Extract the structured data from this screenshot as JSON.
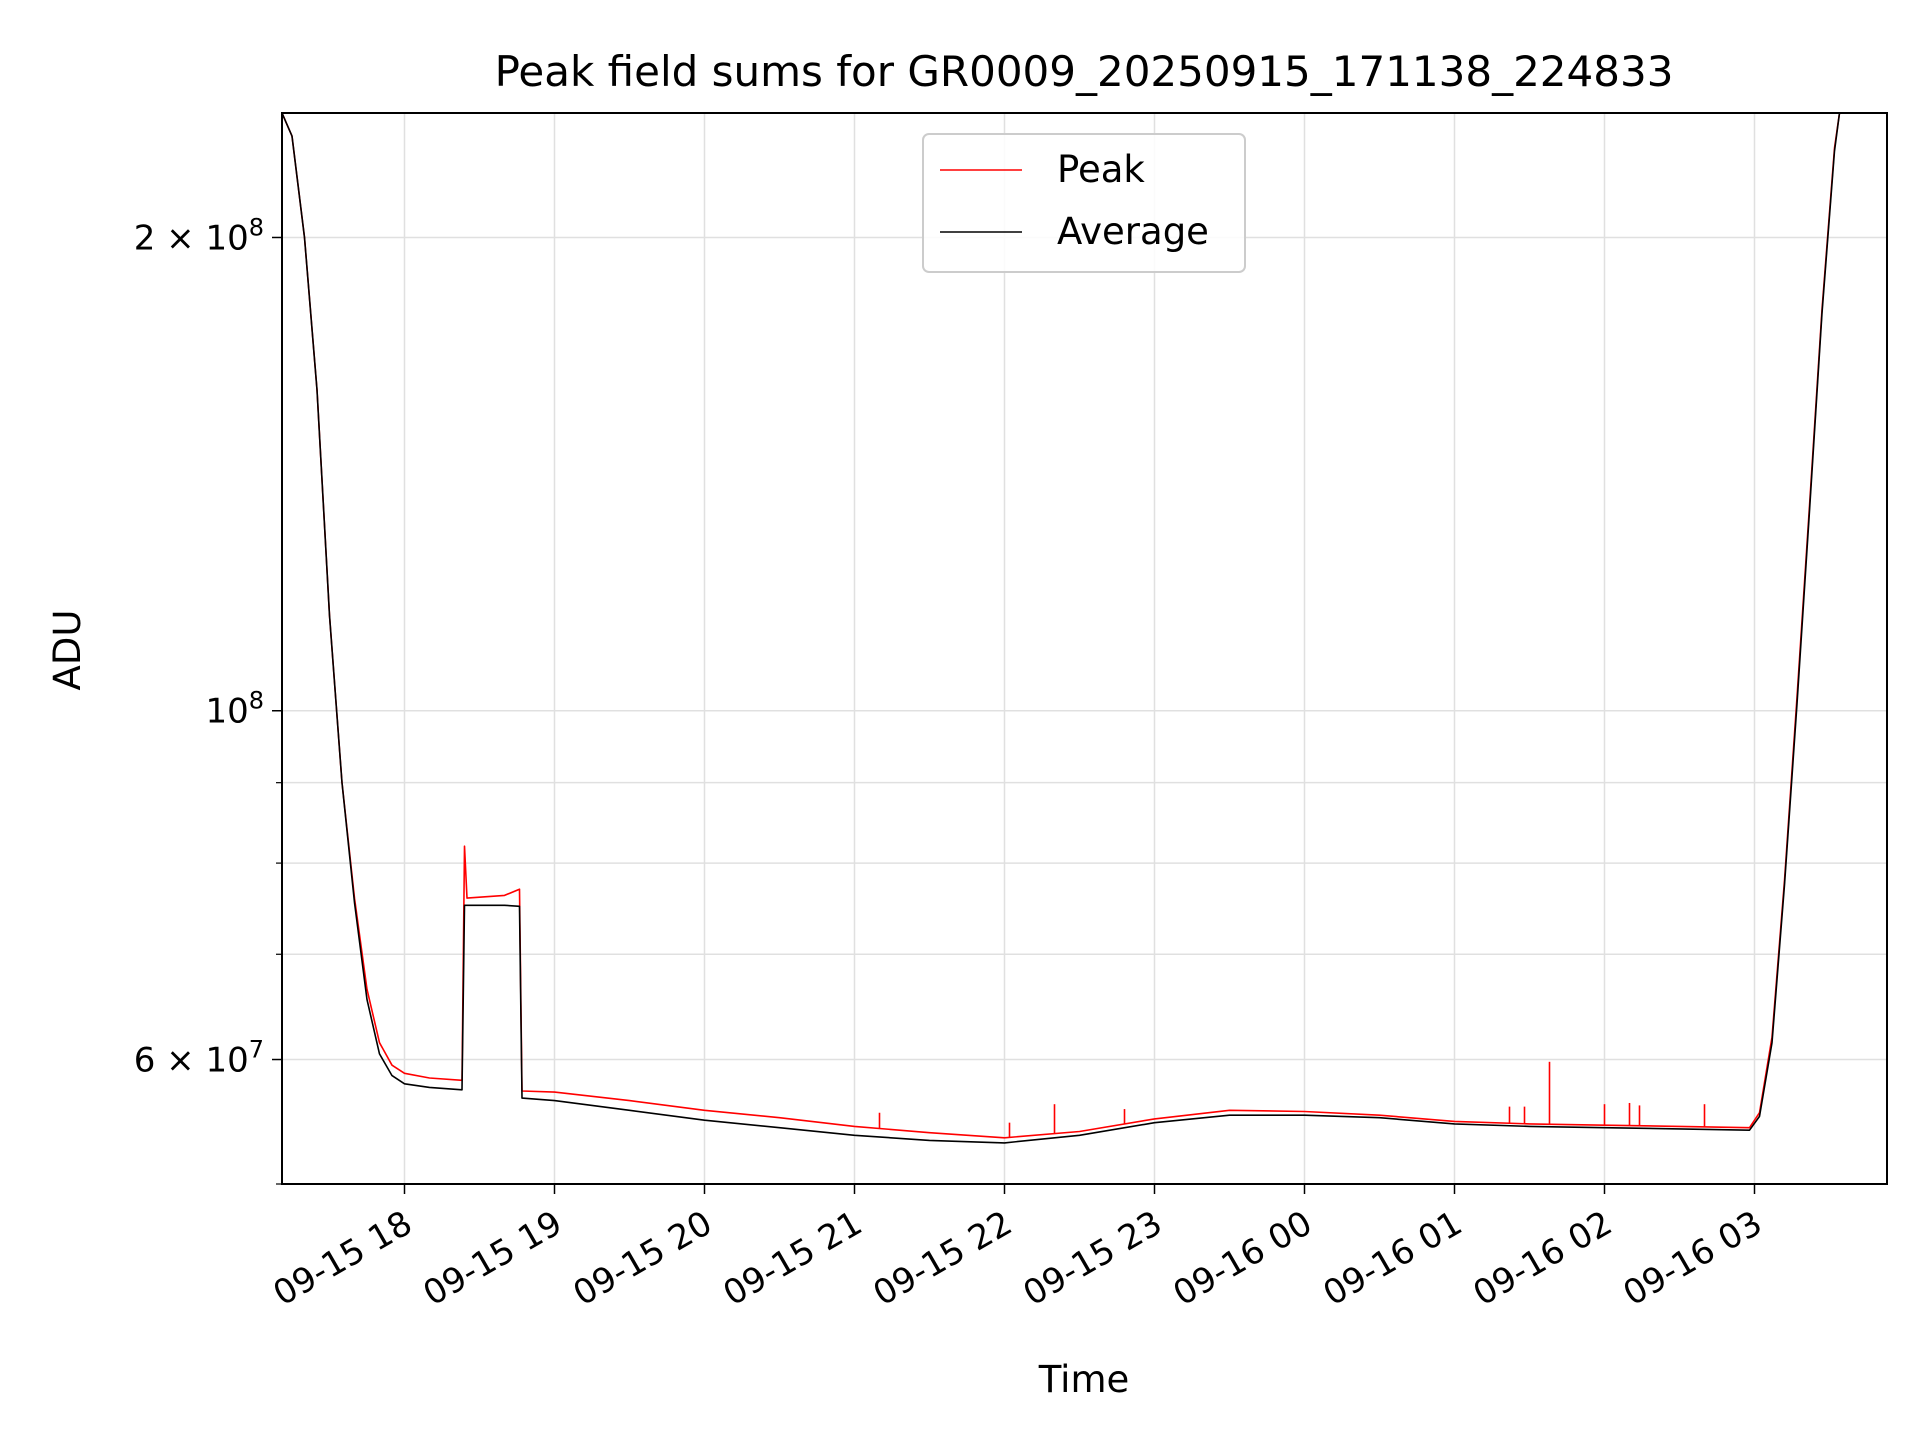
{
  "chart_data": {
    "type": "line",
    "title": "Peak field sums for GR0009_20250915_171138_224833",
    "xlabel": "Time",
    "ylabel": "ADU",
    "y_scale": "log",
    "ylim": [
      50000000,
      240000000
    ],
    "xlim": [
      "2025-09-15 17:11",
      "2025-09-16 03:53"
    ],
    "grid": true,
    "legend_position": "upper center",
    "x_ticks": [
      "09-15 18",
      "09-15 19",
      "09-15 20",
      "09-15 21",
      "09-15 22",
      "09-15 23",
      "09-16 00",
      "09-16 01",
      "09-16 02",
      "09-16 03"
    ],
    "y_ticks": [
      {
        "value": 200000000,
        "base": "2 × 10",
        "exp": "8"
      },
      {
        "value": 100000000,
        "base": "10",
        "exp": "8"
      },
      {
        "value": 60000000,
        "base": "6 × 10",
        "exp": "7"
      }
    ],
    "series": [
      {
        "name": "Peak",
        "color": "#ff0000",
        "points": [
          [
            "2025-09-15 17:11",
            245000000
          ],
          [
            "2025-09-15 17:15",
            232000000
          ],
          [
            "2025-09-15 17:20",
            200000000
          ],
          [
            "2025-09-15 17:25",
            160000000
          ],
          [
            "2025-09-15 17:30",
            115000000
          ],
          [
            "2025-09-15 17:35",
            90000000
          ],
          [
            "2025-09-15 17:40",
            76000000
          ],
          [
            "2025-09-15 17:45",
            66500000
          ],
          [
            "2025-09-15 17:50",
            61500000
          ],
          [
            "2025-09-15 17:55",
            59500000
          ],
          [
            "2025-09-15 18:00",
            58800000
          ],
          [
            "2025-09-15 18:10",
            58400000
          ],
          [
            "2025-09-15 18:23",
            58200000
          ],
          [
            "2025-09-15 18:24",
            82000000
          ],
          [
            "2025-09-15 18:25",
            76000000
          ],
          [
            "2025-09-15 18:40",
            76300000
          ],
          [
            "2025-09-15 18:46",
            77000000
          ],
          [
            "2025-09-15 18:47",
            57300000
          ],
          [
            "2025-09-15 19:00",
            57200000
          ],
          [
            "2025-09-15 19:30",
            56500000
          ],
          [
            "2025-09-15 20:00",
            55700000
          ],
          [
            "2025-09-15 20:30",
            55100000
          ],
          [
            "2025-09-15 21:00",
            54400000
          ],
          [
            "2025-09-15 21:30",
            53900000
          ],
          [
            "2025-09-15 22:00",
            53500000
          ],
          [
            "2025-09-15 22:30",
            54000000
          ],
          [
            "2025-09-15 23:00",
            55000000
          ],
          [
            "2025-09-15 23:30",
            55700000
          ],
          [
            "2025-09-16 00:00",
            55600000
          ],
          [
            "2025-09-16 00:30",
            55300000
          ],
          [
            "2025-09-16 01:00",
            54800000
          ],
          [
            "2025-09-16 01:30",
            54600000
          ],
          [
            "2025-09-16 02:00",
            54500000
          ],
          [
            "2025-09-16 02:30",
            54400000
          ],
          [
            "2025-09-16 02:58",
            54300000
          ],
          [
            "2025-09-16 03:02",
            55500000
          ],
          [
            "2025-09-16 03:07",
            62000000
          ],
          [
            "2025-09-16 03:12",
            78000000
          ],
          [
            "2025-09-16 03:17",
            102000000
          ],
          [
            "2025-09-16 03:22",
            135000000
          ],
          [
            "2025-09-16 03:27",
            180000000
          ],
          [
            "2025-09-16 03:32",
            228000000
          ],
          [
            "2025-09-16 03:34",
            245000000
          ]
        ],
        "spikes": [
          [
            "2025-09-15 18:24",
            82000000
          ],
          [
            "2025-09-15 21:10",
            55500000
          ],
          [
            "2025-09-15 22:02",
            54700000
          ],
          [
            "2025-09-15 22:20",
            56200000
          ],
          [
            "2025-09-15 22:48",
            55800000
          ],
          [
            "2025-09-16 01:38",
            59800000
          ],
          [
            "2025-09-16 01:22",
            56000000
          ],
          [
            "2025-09-16 01:28",
            56000000
          ],
          [
            "2025-09-16 02:00",
            56200000
          ],
          [
            "2025-09-16 02:10",
            56300000
          ],
          [
            "2025-09-16 02:14",
            56100000
          ],
          [
            "2025-09-16 02:40",
            56200000
          ]
        ]
      },
      {
        "name": "Average",
        "color": "#000000",
        "points": [
          [
            "2025-09-15 17:11",
            245000000
          ],
          [
            "2025-09-15 17:15",
            232000000
          ],
          [
            "2025-09-15 17:20",
            200000000
          ],
          [
            "2025-09-15 17:25",
            160000000
          ],
          [
            "2025-09-15 17:30",
            115000000
          ],
          [
            "2025-09-15 17:35",
            90000000
          ],
          [
            "2025-09-15 17:40",
            75500000
          ],
          [
            "2025-09-15 17:45",
            65500000
          ],
          [
            "2025-09-15 17:50",
            60500000
          ],
          [
            "2025-09-15 17:55",
            58600000
          ],
          [
            "2025-09-15 18:00",
            57900000
          ],
          [
            "2025-09-15 18:10",
            57600000
          ],
          [
            "2025-09-15 18:23",
            57400000
          ],
          [
            "2025-09-15 18:24",
            75200000
          ],
          [
            "2025-09-15 18:40",
            75200000
          ],
          [
            "2025-09-15 18:46",
            75100000
          ],
          [
            "2025-09-15 18:47",
            56700000
          ],
          [
            "2025-09-15 19:00",
            56500000
          ],
          [
            "2025-09-15 19:30",
            55700000
          ],
          [
            "2025-09-15 20:00",
            54900000
          ],
          [
            "2025-09-15 20:30",
            54300000
          ],
          [
            "2025-09-15 21:00",
            53700000
          ],
          [
            "2025-09-15 21:30",
            53300000
          ],
          [
            "2025-09-15 22:00",
            53100000
          ],
          [
            "2025-09-15 22:30",
            53700000
          ],
          [
            "2025-09-15 23:00",
            54700000
          ],
          [
            "2025-09-15 23:30",
            55300000
          ],
          [
            "2025-09-16 00:00",
            55300000
          ],
          [
            "2025-09-16 00:30",
            55100000
          ],
          [
            "2025-09-16 01:00",
            54600000
          ],
          [
            "2025-09-16 01:30",
            54400000
          ],
          [
            "2025-09-16 02:00",
            54300000
          ],
          [
            "2025-09-16 02:30",
            54200000
          ],
          [
            "2025-09-16 02:58",
            54100000
          ],
          [
            "2025-09-16 03:02",
            55200000
          ],
          [
            "2025-09-16 03:07",
            61500000
          ],
          [
            "2025-09-16 03:12",
            77500000
          ],
          [
            "2025-09-16 03:17",
            101000000
          ],
          [
            "2025-09-16 03:22",
            134000000
          ],
          [
            "2025-09-16 03:27",
            179000000
          ],
          [
            "2025-09-16 03:32",
            227000000
          ],
          [
            "2025-09-16 03:34",
            245000000
          ]
        ]
      }
    ]
  }
}
